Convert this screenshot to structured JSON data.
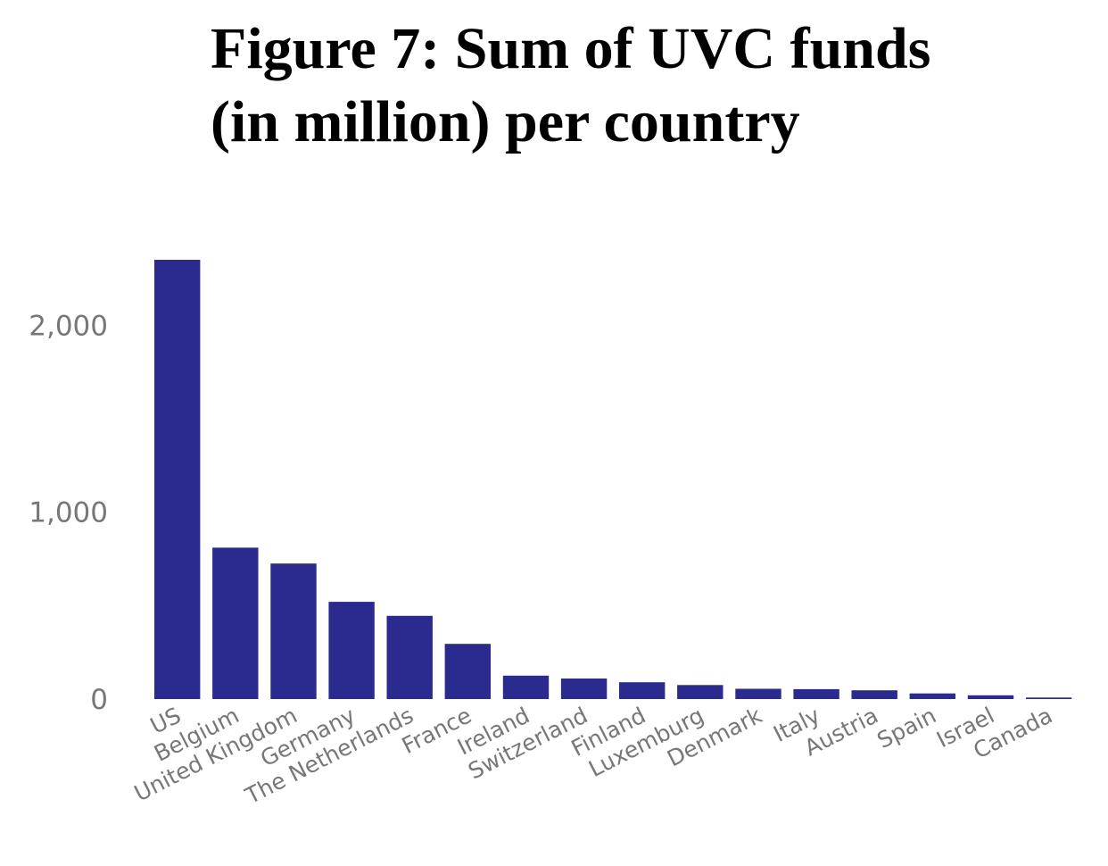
{
  "title": {
    "line1": "Figure 7: Sum of UVC funds",
    "line2": "(in million) per country"
  },
  "colors": {
    "bar": "#2a2a8f",
    "tick_text": "#777777",
    "background": "#ffffff"
  },
  "chart_data": {
    "type": "bar",
    "title": "Figure 7: Sum of UVC funds (in million) per country",
    "xlabel": "",
    "ylabel": "",
    "categories": [
      "US",
      "Belgium",
      "United Kingdom",
      "Germany",
      "The Netherlands",
      "France",
      "Ireland",
      "Switzerland",
      "Finland",
      "Luxemburg",
      "Denmark",
      "Italy",
      "Austria",
      "Spain",
      "Israel",
      "Canada"
    ],
    "values": [
      2350,
      810,
      725,
      520,
      445,
      295,
      125,
      110,
      90,
      75,
      55,
      53,
      47,
      30,
      20,
      8
    ],
    "ylim": [
      0,
      2350
    ],
    "yticks": [
      0,
      1000,
      2000
    ],
    "ytick_labels": [
      "0",
      "1,000",
      "2,000"
    ],
    "grid": false,
    "legend": "none"
  }
}
